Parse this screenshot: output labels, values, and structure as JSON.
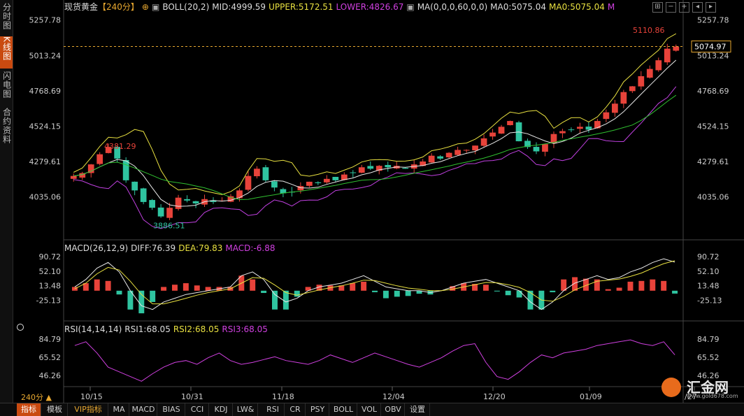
{
  "sidebar": {
    "items": [
      {
        "label": "分时图",
        "active": false
      },
      {
        "label": "K线图",
        "active": true
      },
      {
        "label": "闪电图",
        "active": false
      },
      {
        "label": "合约资料",
        "active": false
      }
    ]
  },
  "header": {
    "instrument": "现货黄金",
    "period": "【240分】",
    "boll": "BOLL(20,2)",
    "mid": "MID:4999.59",
    "upper": "UPPER:5172.51",
    "lower": "LOWER:4826.67",
    "ma": "MA(0,0,0,60,0,0)",
    "ma0": "MA0:5075.04",
    "ma0b": "MA0:5075.04",
    "m": "M"
  },
  "macd_header": {
    "name": "MACD(26,12,9)",
    "diff": "DIFF:76.39",
    "dea": "DEA:79.83",
    "macd": "MACD:-6.88"
  },
  "rsi_header": {
    "name": "RSI(14,14,14)",
    "rsi1": "RSI1:68.05",
    "rsi2": "RSI2:68.05",
    "rsi3": "RSI3:68.05"
  },
  "period_label": "240分 ▲",
  "toolbar": {
    "items": [
      "指标",
      "模板",
      "VIP指标",
      "MA",
      "MACD",
      "BIAS",
      "CCI",
      "KDJ",
      "LW&",
      "RSI",
      "CR",
      "PSY",
      "BOLL",
      "VOL",
      "OBV",
      "设置"
    ]
  },
  "logo": {
    "text": "汇金网",
    "url": "www.gold678.com"
  },
  "colors": {
    "up": "#e8433a",
    "down": "#2fc4a0",
    "upper": "#e8e040",
    "mid": "#e8e8e8",
    "lower": "#c040e0",
    "ma60": "#30c030",
    "diff": "#e8e8e8",
    "dea": "#e8e040",
    "rsi": "#d040e0",
    "accent": "#c94a10"
  },
  "chart_data": [
    {
      "type": "candlestick",
      "title": "现货黄金【240分】",
      "price_axis_ticks": [
        "5257.78",
        "5013.24",
        "4768.69",
        "4524.15",
        "4279.61",
        "4035.06"
      ],
      "ylim": [
        3840,
        5300
      ],
      "x_tick_labels": [
        "10/15",
        "10/31",
        "11/18",
        "12/04",
        "12/20",
        "01/09",
        "/27"
      ],
      "current_price": "5074.97",
      "annotations": {
        "high": "5110.86",
        "peak": "4381.29",
        "low": "3886.51"
      },
      "close_series_approx": [
        4180,
        4200,
        4260,
        4330,
        4381,
        4300,
        4150,
        4080,
        4000,
        3960,
        3900,
        3960,
        4030,
        4010,
        3990,
        4020,
        4000,
        4010,
        4040,
        4080,
        4180,
        4230,
        4150,
        4100,
        4060,
        4070,
        4110,
        4140,
        4130,
        4160,
        4150,
        4190,
        4200,
        4240,
        4230,
        4250,
        4240,
        4250,
        4230,
        4260,
        4280,
        4320,
        4300,
        4340,
        4360,
        4360,
        4390,
        4440,
        4480,
        4520,
        4560,
        4420,
        4380,
        4350,
        4400,
        4470,
        4490,
        4500,
        4520,
        4500,
        4560,
        4620,
        4680,
        4760,
        4800,
        4870,
        4920,
        4980,
        5060,
        5075
      ]
    },
    {
      "type": "line",
      "title": "MACD(26,12,9)",
      "axis_ticks": [
        "90.72",
        "52.10",
        "13.48",
        "-25.13"
      ],
      "ylim": [
        -45,
        100
      ],
      "series": [
        {
          "name": "DIFF",
          "values": [
            10,
            30,
            60,
            75,
            50,
            0,
            -40,
            -50,
            -30,
            -20,
            -10,
            -5,
            0,
            5,
            10,
            40,
            50,
            30,
            -10,
            -30,
            -20,
            0,
            10,
            15,
            20,
            30,
            40,
            25,
            10,
            5,
            0,
            0,
            -5,
            0,
            10,
            20,
            25,
            30,
            20,
            10,
            0,
            -30,
            -50,
            -30,
            0,
            20,
            30,
            40,
            30,
            35,
            50,
            60,
            75,
            85,
            76
          ]
        },
        {
          "name": "DEA",
          "values": [
            5,
            20,
            45,
            62,
            55,
            25,
            -10,
            -35,
            -35,
            -28,
            -20,
            -12,
            -5,
            0,
            5,
            20,
            35,
            33,
            15,
            -5,
            -12,
            -5,
            2,
            8,
            13,
            20,
            28,
            27,
            20,
            13,
            7,
            4,
            0,
            0,
            4,
            10,
            16,
            22,
            21,
            16,
            9,
            -5,
            -25,
            -28,
            -15,
            2,
            14,
            25,
            28,
            31,
            38,
            47,
            60,
            72,
            79.83
          ]
        }
      ]
    },
    {
      "type": "line",
      "title": "RSI(14,14,14)",
      "axis_ticks": [
        "84.79",
        "65.52",
        "46.26"
      ],
      "ylim": [
        38,
        90
      ],
      "series": [
        {
          "name": "RSI1",
          "values": [
            78,
            82,
            70,
            55,
            50,
            45,
            40,
            48,
            55,
            60,
            62,
            58,
            65,
            70,
            62,
            58,
            60,
            63,
            66,
            62,
            60,
            58,
            62,
            68,
            64,
            60,
            65,
            70,
            66,
            62,
            58,
            55,
            60,
            65,
            72,
            78,
            80,
            60,
            45,
            42,
            50,
            60,
            68,
            65,
            70,
            72,
            74,
            78,
            80,
            82,
            84,
            80,
            78,
            82,
            68
          ]
        }
      ]
    }
  ]
}
